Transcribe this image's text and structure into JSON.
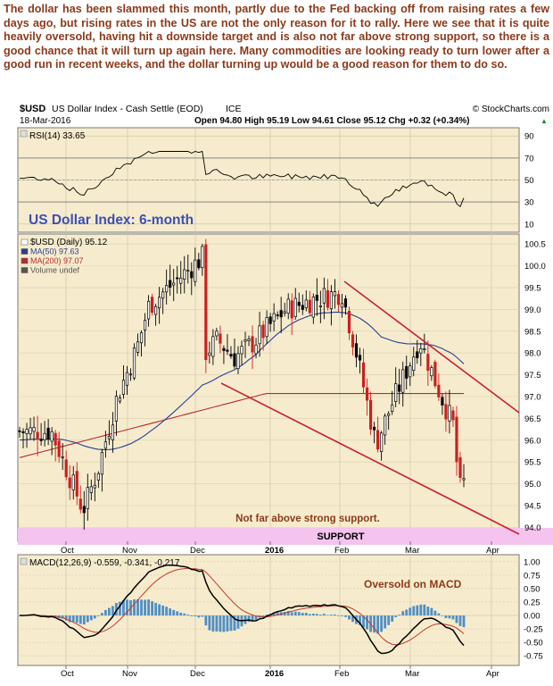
{
  "commentary": "The dollar has been slammed this month, partly due to the Fed backing off from raising rates a few days ago, but rising rates in the US are not the only reason for it to rally. Here we see that it is quite heavily oversold, having hit a downside target and is also not far above strong support, so there is a good chance that it will turn up again here. Many commodities are looking ready to turn lower after a good run in recent weeks, and the dollar turning up would be a good reason for them to do so.",
  "header": {
    "symbol": "$USD",
    "name": "US Dollar Index - Cash Settle (EOD)",
    "exchange": "ICE",
    "credit": "© StockCharts.com",
    "date": "18-Mar-2016",
    "ohlc": "Open 94.80  High 95.19  Low 94.61  Close 95.12  Chg +0.32 (+0.34%)",
    "chg_arrow": "▲"
  },
  "rsi_panel": {
    "label": "RSI(14) 33.65",
    "ticks": [
      "90",
      "70",
      "50",
      "30",
      "10"
    ],
    "tick_values": [
      90,
      70,
      50,
      30,
      10
    ]
  },
  "price_panel": {
    "title": "US Dollar Index: 6-month",
    "legend": [
      {
        "text": "$USD (Daily) 95.12",
        "color": "#000000"
      },
      {
        "text": "MA(50) 97.63",
        "color": "#2a3f8f"
      },
      {
        "text": "MA(200) 97.07",
        "color": "#b8292f"
      },
      {
        "text": "Volume undef",
        "color": "#555555"
      }
    ],
    "ticks": [
      "100.5",
      "100.0",
      "99.5",
      "99.0",
      "98.5",
      "98.0",
      "97.5",
      "97.0",
      "96.5",
      "96.0",
      "95.5",
      "95.0",
      "94.5",
      "94.0"
    ],
    "tick_values": [
      100.5,
      100.0,
      99.5,
      99.0,
      98.5,
      98.0,
      97.5,
      97.0,
      96.5,
      96.0,
      95.5,
      95.0,
      94.5,
      94.0
    ],
    "annotation": "Not far above strong support.",
    "support_label": "SUPPORT"
  },
  "macd_panel": {
    "label": "MACD(12,26,9) -0.559, -0.341, -0.217",
    "annotation": "Oversold on MACD",
    "ticks": [
      "1.00",
      "0.75",
      "0.50",
      "0.25",
      "0.00",
      "-0.25",
      "-0.50",
      "-0.75"
    ],
    "tick_values": [
      1.0,
      0.75,
      0.5,
      0.25,
      0.0,
      -0.25,
      -0.5,
      -0.75
    ]
  },
  "x_axis": {
    "labels": [
      "Oct",
      "Nov",
      "Dec",
      "2016",
      "Feb",
      "Mar",
      "Apr"
    ]
  },
  "colors": {
    "panel_bg": "#f6eccd",
    "up_candle": "#ffffff",
    "down_candle": "#000000",
    "falling_candle": "#cc1f1f",
    "ma50": "#2a3f8f",
    "ma200": "#b8292f",
    "trendline": "#cc1f2d",
    "support_band": "#f4c3ee",
    "annotation": "#8b3a1a",
    "title": "#3c4fb4",
    "macd_line": "#000000",
    "signal_line": "#c0392b",
    "histogram": "#4f8fc6"
  },
  "chart_data": {
    "type": "candlestick",
    "title": "US Dollar Index: 6-month",
    "series_name": "$USD (Daily)",
    "dates_range": [
      "2015-09-18",
      "2016-03-18"
    ],
    "close_last": 95.12,
    "ylim": [
      93.8,
      100.7
    ],
    "approx_closes": [
      {
        "date": "2015-09-21",
        "close": 96.2
      },
      {
        "date": "2015-10-01",
        "close": 96.2
      },
      {
        "date": "2015-10-14",
        "close": 94.4
      },
      {
        "date": "2015-10-20",
        "close": 95.3
      },
      {
        "date": "2015-10-28",
        "close": 97.0
      },
      {
        "date": "2015-11-05",
        "close": 98.1
      },
      {
        "date": "2015-11-10",
        "close": 99.1
      },
      {
        "date": "2015-11-20",
        "close": 99.6
      },
      {
        "date": "2015-12-02",
        "close": 100.2
      },
      {
        "date": "2015-12-03",
        "close": 98.0
      },
      {
        "date": "2015-12-08",
        "close": 98.3
      },
      {
        "date": "2015-12-15",
        "close": 97.9
      },
      {
        "date": "2015-12-22",
        "close": 98.2
      },
      {
        "date": "2016-01-05",
        "close": 99.0
      },
      {
        "date": "2016-01-15",
        "close": 99.2
      },
      {
        "date": "2016-01-28",
        "close": 99.4
      },
      {
        "date": "2016-02-03",
        "close": 98.0
      },
      {
        "date": "2016-02-11",
        "close": 95.9
      },
      {
        "date": "2016-02-18",
        "close": 96.9
      },
      {
        "date": "2016-02-29",
        "close": 98.3
      },
      {
        "date": "2016-03-08",
        "close": 97.1
      },
      {
        "date": "2016-03-14",
        "close": 96.3
      },
      {
        "date": "2016-03-16",
        "close": 94.8
      },
      {
        "date": "2016-03-18",
        "close": 95.12
      }
    ],
    "ma50_last": 97.63,
    "ma200_last": 97.07,
    "rsi_last": 33.65,
    "macd": {
      "macd": -0.559,
      "signal": -0.341,
      "histogram": -0.217
    },
    "support_level": 94.0,
    "trendlines": [
      {
        "name": "lower channel",
        "from": {
          "date": "2015-12-03",
          "value": 97.3
        },
        "to": {
          "date": "2016-04-01",
          "value": 93.9
        }
      },
      {
        "name": "upper channel",
        "from": {
          "date": "2016-01-29",
          "value": 99.7
        },
        "to": {
          "date": "2016-04-01",
          "value": 96.6
        }
      }
    ]
  }
}
